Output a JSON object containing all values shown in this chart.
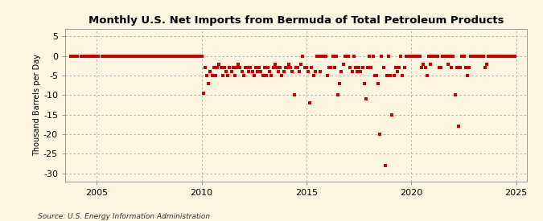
{
  "title": "Monthly U.S. Net Imports from Bermuda of Total Petroleum Products",
  "ylabel": "Thousand Barrels per Day",
  "source": "Source: U.S. Energy Information Administration",
  "xlim": [
    2003.5,
    2025.5
  ],
  "ylim": [
    -32,
    7
  ],
  "yticks": [
    5,
    0,
    -5,
    -10,
    -15,
    -20,
    -25,
    -30
  ],
  "xticks": [
    2005,
    2010,
    2015,
    2020,
    2025
  ],
  "background_color": "#fdf5e0",
  "grid_color": "#aaaaaa",
  "marker_color": "#cc0000",
  "marker_size": 5,
  "data_points": [
    [
      2003.75,
      0
    ],
    [
      2003.92,
      0
    ],
    [
      2004.0,
      0
    ],
    [
      2004.08,
      0
    ],
    [
      2004.25,
      0
    ],
    [
      2004.42,
      0
    ],
    [
      2004.5,
      0
    ],
    [
      2004.58,
      0
    ],
    [
      2004.67,
      0
    ],
    [
      2004.75,
      0
    ],
    [
      2004.83,
      0
    ],
    [
      2004.92,
      0
    ],
    [
      2005.0,
      0
    ],
    [
      2005.08,
      0
    ],
    [
      2005.25,
      0
    ],
    [
      2005.33,
      0
    ],
    [
      2005.42,
      0
    ],
    [
      2005.5,
      0
    ],
    [
      2005.58,
      0
    ],
    [
      2005.67,
      0
    ],
    [
      2005.75,
      0
    ],
    [
      2005.83,
      0
    ],
    [
      2005.92,
      0
    ],
    [
      2006.0,
      0
    ],
    [
      2006.08,
      0
    ],
    [
      2006.17,
      0
    ],
    [
      2006.25,
      0
    ],
    [
      2006.33,
      0
    ],
    [
      2006.42,
      0
    ],
    [
      2006.5,
      0
    ],
    [
      2006.58,
      0
    ],
    [
      2006.67,
      0
    ],
    [
      2006.75,
      0
    ],
    [
      2006.83,
      0
    ],
    [
      2006.92,
      0
    ],
    [
      2007.0,
      0
    ],
    [
      2007.08,
      0
    ],
    [
      2007.17,
      0
    ],
    [
      2007.25,
      0
    ],
    [
      2007.33,
      0
    ],
    [
      2007.5,
      0
    ],
    [
      2007.58,
      0
    ],
    [
      2007.67,
      0
    ],
    [
      2007.75,
      0
    ],
    [
      2007.83,
      0
    ],
    [
      2007.92,
      0
    ],
    [
      2008.0,
      0
    ],
    [
      2008.08,
      0
    ],
    [
      2008.17,
      0
    ],
    [
      2008.25,
      0
    ],
    [
      2008.33,
      0
    ],
    [
      2008.5,
      0
    ],
    [
      2008.58,
      0
    ],
    [
      2008.67,
      0
    ],
    [
      2008.75,
      0
    ],
    [
      2008.83,
      0
    ],
    [
      2008.92,
      0
    ],
    [
      2009.0,
      0
    ],
    [
      2009.08,
      0
    ],
    [
      2009.17,
      0
    ],
    [
      2009.25,
      0
    ],
    [
      2009.33,
      0
    ],
    [
      2009.42,
      0
    ],
    [
      2009.5,
      0
    ],
    [
      2009.58,
      0
    ],
    [
      2009.67,
      0
    ],
    [
      2009.75,
      0
    ],
    [
      2009.83,
      0
    ],
    [
      2009.92,
      0
    ],
    [
      2010.0,
      0
    ],
    [
      2010.08,
      -9.5
    ],
    [
      2010.17,
      -3
    ],
    [
      2010.25,
      -5
    ],
    [
      2010.33,
      -7
    ],
    [
      2010.42,
      -4
    ],
    [
      2010.5,
      -5
    ],
    [
      2010.58,
      -3
    ],
    [
      2010.67,
      -5
    ],
    [
      2010.75,
      -3
    ],
    [
      2010.83,
      -2
    ],
    [
      2010.92,
      -3
    ],
    [
      2011.0,
      -5
    ],
    [
      2011.08,
      -3
    ],
    [
      2011.17,
      -4
    ],
    [
      2011.25,
      -5
    ],
    [
      2011.33,
      -3
    ],
    [
      2011.42,
      -4
    ],
    [
      2011.5,
      -3
    ],
    [
      2011.58,
      -5
    ],
    [
      2011.67,
      -3
    ],
    [
      2011.75,
      -2
    ],
    [
      2011.83,
      -3
    ],
    [
      2011.92,
      -4
    ],
    [
      2012.0,
      -5
    ],
    [
      2012.08,
      -3
    ],
    [
      2012.17,
      -3
    ],
    [
      2012.25,
      -4
    ],
    [
      2012.33,
      -3
    ],
    [
      2012.42,
      -4
    ],
    [
      2012.5,
      -5
    ],
    [
      2012.58,
      -3
    ],
    [
      2012.67,
      -4
    ],
    [
      2012.75,
      -3
    ],
    [
      2012.83,
      -4
    ],
    [
      2012.92,
      -5
    ],
    [
      2013.0,
      -3
    ],
    [
      2013.08,
      -5
    ],
    [
      2013.17,
      -3
    ],
    [
      2013.25,
      -4
    ],
    [
      2013.33,
      -5
    ],
    [
      2013.42,
      -3
    ],
    [
      2013.5,
      -2
    ],
    [
      2013.58,
      -3
    ],
    [
      2013.67,
      -4
    ],
    [
      2013.75,
      -3
    ],
    [
      2013.83,
      -5
    ],
    [
      2013.92,
      -4
    ],
    [
      2014.0,
      -3
    ],
    [
      2014.08,
      -3
    ],
    [
      2014.17,
      -2
    ],
    [
      2014.25,
      -3
    ],
    [
      2014.33,
      -4
    ],
    [
      2014.42,
      -10
    ],
    [
      2014.5,
      -3
    ],
    [
      2014.58,
      -3
    ],
    [
      2014.67,
      -4
    ],
    [
      2014.75,
      -2
    ],
    [
      2014.83,
      0
    ],
    [
      2014.92,
      -3
    ],
    [
      2015.0,
      -3
    ],
    [
      2015.08,
      -4
    ],
    [
      2015.17,
      -12
    ],
    [
      2015.25,
      -3
    ],
    [
      2015.33,
      -5
    ],
    [
      2015.42,
      -4
    ],
    [
      2015.5,
      0
    ],
    [
      2015.58,
      0
    ],
    [
      2015.67,
      -4
    ],
    [
      2015.75,
      0
    ],
    [
      2015.83,
      0
    ],
    [
      2015.92,
      0
    ],
    [
      2016.0,
      -5
    ],
    [
      2016.08,
      -3
    ],
    [
      2016.17,
      -3
    ],
    [
      2016.25,
      0
    ],
    [
      2016.33,
      -3
    ],
    [
      2016.42,
      0
    ],
    [
      2016.5,
      -10
    ],
    [
      2016.58,
      -7
    ],
    [
      2016.67,
      -4
    ],
    [
      2016.75,
      -2
    ],
    [
      2016.83,
      0
    ],
    [
      2016.92,
      0
    ],
    [
      2017.0,
      0
    ],
    [
      2017.08,
      -3
    ],
    [
      2017.17,
      -4
    ],
    [
      2017.25,
      0
    ],
    [
      2017.33,
      -3
    ],
    [
      2017.42,
      -4
    ],
    [
      2017.5,
      -3
    ],
    [
      2017.58,
      -4
    ],
    [
      2017.67,
      -3
    ],
    [
      2017.75,
      -7
    ],
    [
      2017.83,
      -11
    ],
    [
      2017.92,
      -3
    ],
    [
      2018.0,
      0
    ],
    [
      2018.08,
      -3
    ],
    [
      2018.17,
      0
    ],
    [
      2018.25,
      -5
    ],
    [
      2018.33,
      -5
    ],
    [
      2018.42,
      -7
    ],
    [
      2018.5,
      -20
    ],
    [
      2018.58,
      0
    ],
    [
      2018.67,
      -3
    ],
    [
      2018.75,
      -28
    ],
    [
      2018.83,
      -5
    ],
    [
      2018.92,
      0
    ],
    [
      2019.0,
      -5
    ],
    [
      2019.08,
      -15
    ],
    [
      2019.17,
      -5
    ],
    [
      2019.25,
      -3
    ],
    [
      2019.33,
      -4
    ],
    [
      2019.42,
      -3
    ],
    [
      2019.5,
      0
    ],
    [
      2019.58,
      -5
    ],
    [
      2019.67,
      -3
    ],
    [
      2019.75,
      0
    ],
    [
      2019.83,
      0
    ],
    [
      2019.92,
      0
    ],
    [
      2020.0,
      0
    ],
    [
      2020.08,
      0
    ],
    [
      2020.17,
      0
    ],
    [
      2020.25,
      0
    ],
    [
      2020.33,
      0
    ],
    [
      2020.42,
      0
    ],
    [
      2020.5,
      -3
    ],
    [
      2020.58,
      -2
    ],
    [
      2020.67,
      -3
    ],
    [
      2020.75,
      -5
    ],
    [
      2020.83,
      0
    ],
    [
      2020.92,
      -2
    ],
    [
      2021.0,
      0
    ],
    [
      2021.08,
      0
    ],
    [
      2021.17,
      0
    ],
    [
      2021.25,
      0
    ],
    [
      2021.33,
      -3
    ],
    [
      2021.42,
      -3
    ],
    [
      2021.5,
      0
    ],
    [
      2021.58,
      0
    ],
    [
      2021.67,
      0
    ],
    [
      2021.75,
      -2
    ],
    [
      2021.83,
      0
    ],
    [
      2021.92,
      -3
    ],
    [
      2022.0,
      0
    ],
    [
      2022.08,
      -10
    ],
    [
      2022.17,
      -3
    ],
    [
      2022.25,
      -18
    ],
    [
      2022.33,
      -3
    ],
    [
      2022.42,
      0
    ],
    [
      2022.5,
      0
    ],
    [
      2022.58,
      -3
    ],
    [
      2022.67,
      -5
    ],
    [
      2022.75,
      -3
    ],
    [
      2022.83,
      0
    ],
    [
      2022.92,
      0
    ],
    [
      2023.0,
      0
    ],
    [
      2023.08,
      0
    ],
    [
      2023.17,
      0
    ],
    [
      2023.25,
      0
    ],
    [
      2023.33,
      0
    ],
    [
      2023.42,
      0
    ],
    [
      2023.5,
      -3
    ],
    [
      2023.58,
      -2
    ],
    [
      2023.67,
      0
    ],
    [
      2023.75,
      0
    ],
    [
      2023.83,
      0
    ],
    [
      2023.92,
      0
    ],
    [
      2024.0,
      0
    ],
    [
      2024.08,
      0
    ],
    [
      2024.17,
      0
    ],
    [
      2024.25,
      0
    ],
    [
      2024.33,
      0
    ],
    [
      2024.42,
      0
    ],
    [
      2024.5,
      0
    ],
    [
      2024.58,
      0
    ],
    [
      2024.67,
      0
    ],
    [
      2024.75,
      0
    ],
    [
      2024.83,
      0
    ],
    [
      2024.92,
      0
    ]
  ]
}
